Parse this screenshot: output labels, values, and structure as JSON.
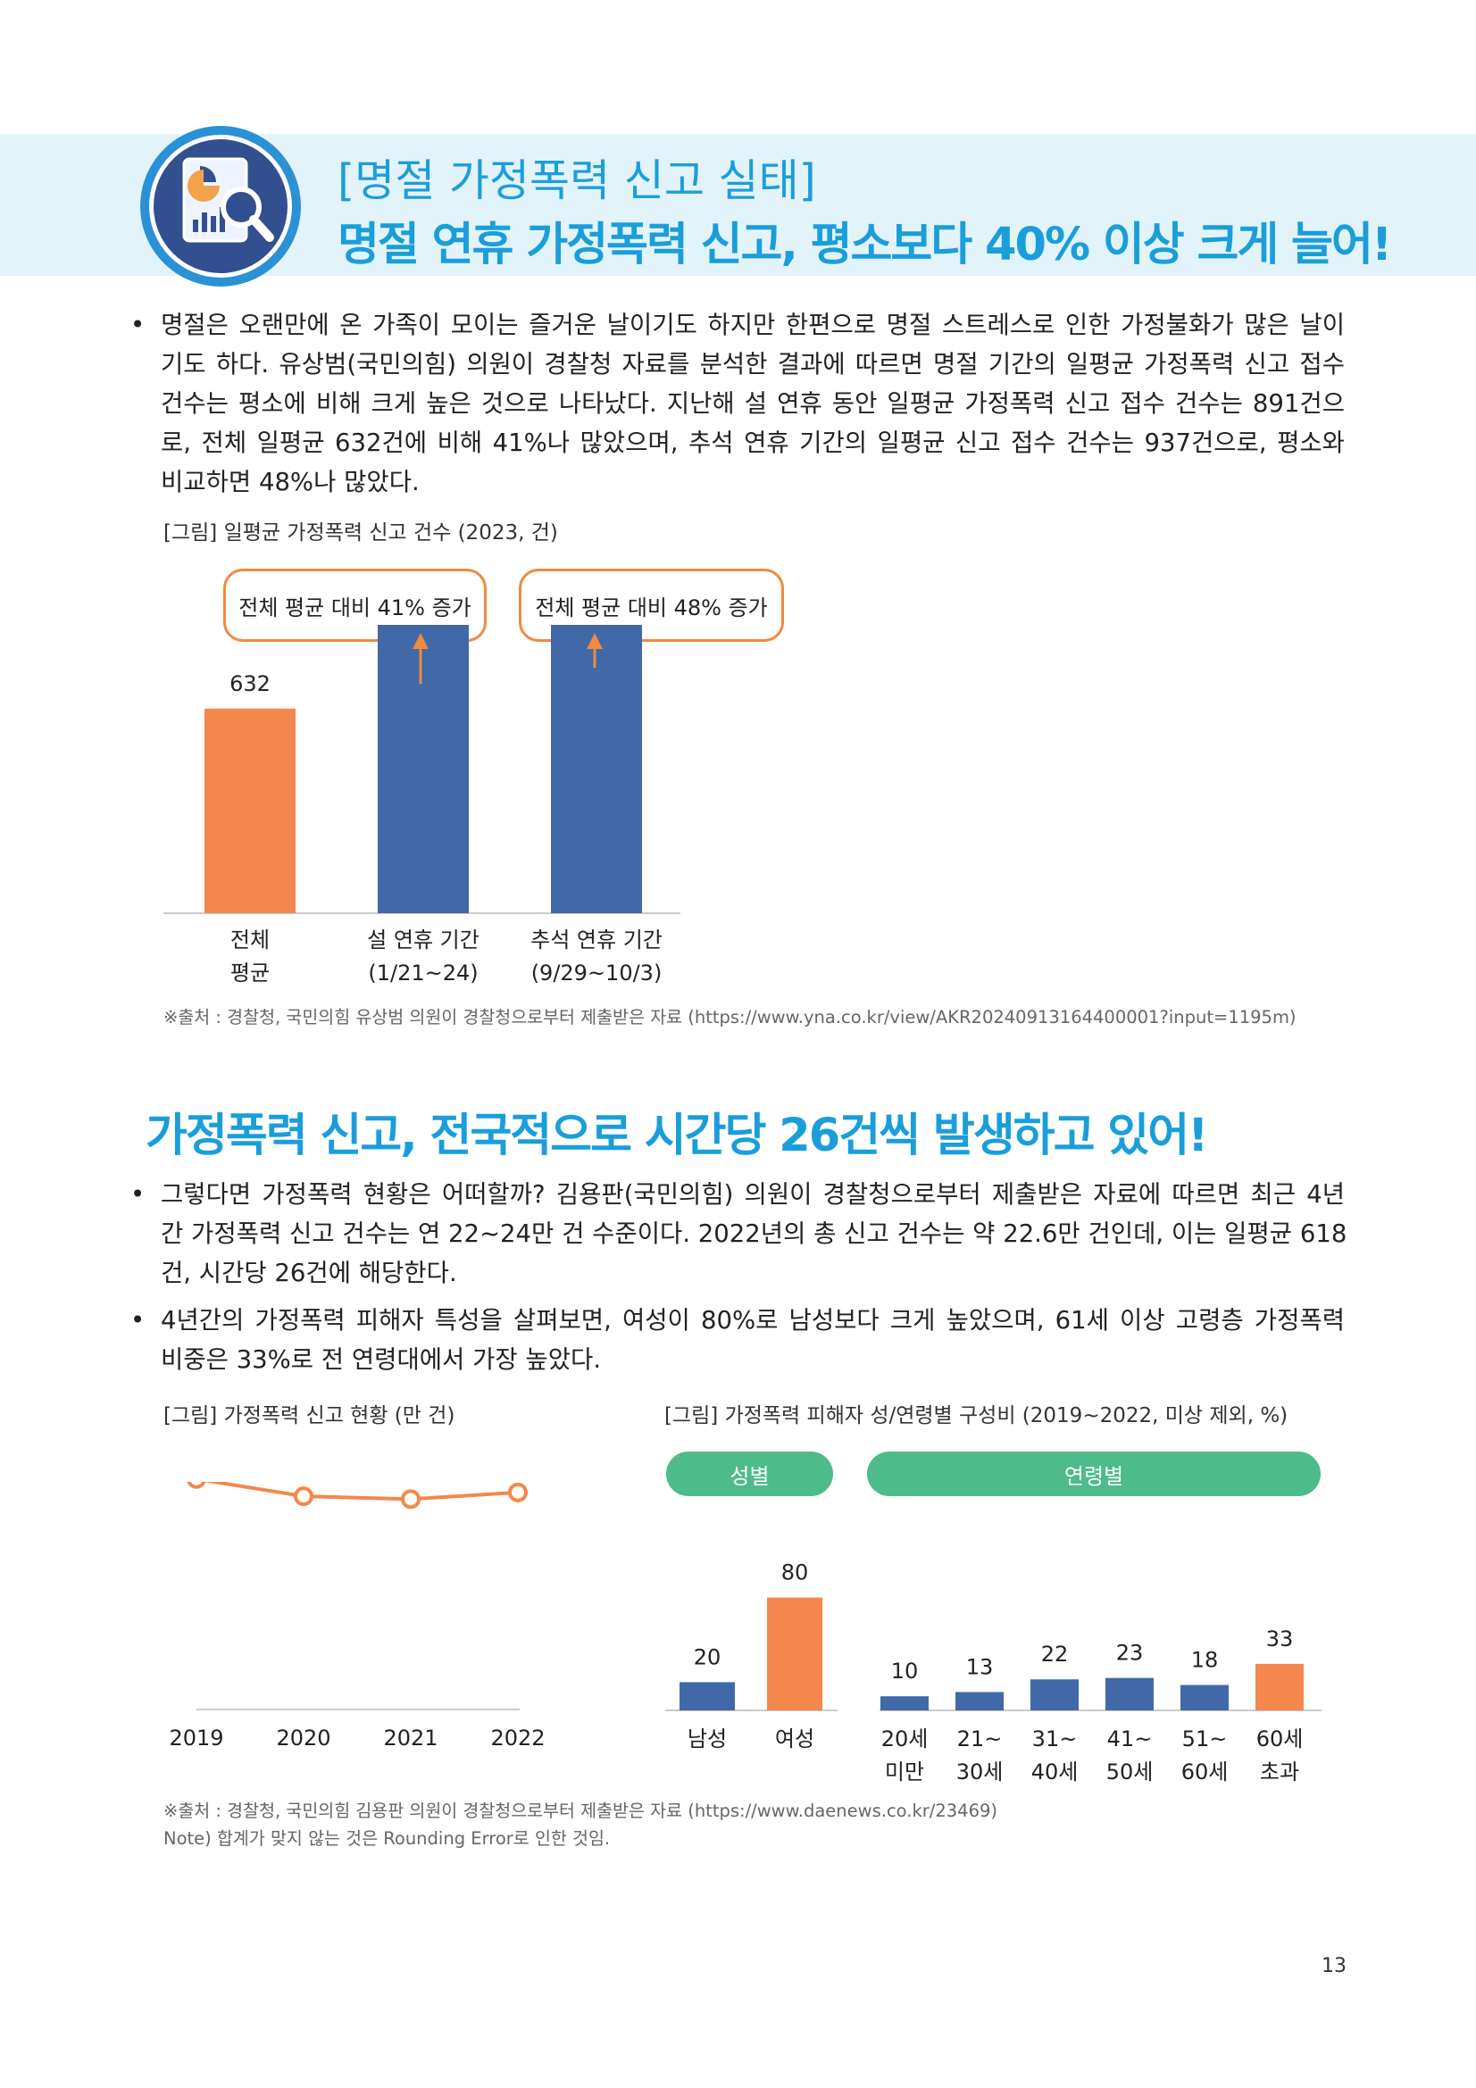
{
  "header": {
    "title1": "[명절 가정폭력 신고 실태]",
    "title2": "명절 연휴 가정폭력 신고, 평소보다 40% 이상 크게 늘어!",
    "icon": "chart-magnifier-icon"
  },
  "section1": {
    "bullet": "•",
    "para_lines": [
      "명절은 오랜만에 온 가족이 모이는 즐거운 날이기도 하지만 한편으로 명절 스트레스로 인한 가정불화가 많은 날이",
      "기도 하다. 유상범(국민의힘) 의원이 경찰청 자료를 분석한 결과에 따르면 명절 기간의 일평균 가정폭력 신고 접수",
      "건수는 평소에 비해 크게 높은 것으로 나타났다. 지난해 설 연휴 동안 일평균 가정폭력 신고 접수 건수는 891건으",
      "로, 전체 일평균 632건에 비해 41%나 많았으며, 추석 연휴 기간의 일평균 신고 접수 건수는 937건으로, 평소와",
      "비교하면 48%나 많았다."
    ],
    "caption": "[그림] 일평균 가정폭력 신고 건수 (2023, 건)",
    "callouts": [
      "전체 평균 대비 41% 증가",
      "전체 평균 대비 48% 증가"
    ],
    "source": "※출처 : 경찰청, 국민의힘 유상범 의원이 경찰청으로부터 제출받은 자료 (https://www.yna.co.kr/view/AKR20240913164400001?input=1195m)"
  },
  "section2": {
    "heading": "가정폭력 신고, 전국적으로 시간당 26건씩 발생하고 있어!",
    "bullet": "•",
    "para1_lines": [
      "그렇다면 가정폭력 현황은 어떠할까? 김용판(국민의힘) 의원이 경찰청으로부터 제출받은 자료에 따르면 최근 4년",
      "간 가정폭력 신고 건수는 연 22~24만 건 수준이다. 2022년의 총 신고 건수는 약 22.6만 건인데, 이는 일평균 618",
      "건, 시간당 26건에 해당한다."
    ],
    "para2_lines": [
      "4년간의 가정폭력 피해자 특성을 살펴보면, 여성이 80%로 남성보다 크게 높았으며, 61세 이상 고령층 가정폭력",
      "비중은 33%로 전 연령대에서 가장 높았다."
    ],
    "caption_left": "[그림] 가정폭력 신고 현황 (만 건)",
    "caption_right": "[그림] 가정폭력 피해자 성/연령별 구성비 (2019~2022, 미상 제외, %)",
    "pill_gender": "성별",
    "pill_age": "연령별",
    "source": "※출처 : 경찰청, 국민의힘 김용판 의원이 경찰청으로부터 제출받은 자료 (https://www.daenews.co.kr/23469)",
    "note": "Note) 합계가 맞지 않는 것은 Rounding Error로 인한 것임."
  },
  "page_number": "13",
  "colors": {
    "accent": "#1a9edb",
    "orange": "#f4874b",
    "blue": "#4169a8",
    "green": "#4dbb8a"
  },
  "chart_data": [
    {
      "type": "bar",
      "categories": [
        [
          "전체",
          "평균"
        ],
        [
          "설 연휴 기간",
          "(1/21~24)"
        ],
        [
          "추석 연휴 기간",
          "(9/29~10/3)"
        ]
      ],
      "values": [
        632,
        891,
        937
      ],
      "labels": [
        "632",
        "891",
        "937"
      ],
      "colors": [
        "#f4874b",
        "#4169a8",
        "#4169a8"
      ],
      "ylim": [
        0,
        1100
      ]
    },
    {
      "type": "line",
      "x": [
        "2019",
        "2020",
        "2021",
        "2022"
      ],
      "values": [
        24.0,
        22.2,
        21.9,
        22.6
      ],
      "labels": [
        "24.0",
        "22.2",
        "21.9",
        "22.6"
      ],
      "ylim": [
        0,
        26.3
      ]
    },
    {
      "type": "bar",
      "group": "성별",
      "categories": [
        [
          "남성"
        ],
        [
          "여성"
        ]
      ],
      "values": [
        20,
        80
      ],
      "labels": [
        "20",
        "80"
      ],
      "colors": [
        "#4169a8",
        "#f4874b"
      ],
      "ylim": [
        0,
        100
      ]
    },
    {
      "type": "bar",
      "group": "연령별",
      "categories": [
        [
          "20세",
          "미만"
        ],
        [
          "21~",
          "30세"
        ],
        [
          "31~",
          "40세"
        ],
        [
          "41~",
          "50세"
        ],
        [
          "51~",
          "60세"
        ],
        [
          "60세",
          "초과"
        ]
      ],
      "values": [
        10,
        13,
        22,
        23,
        18,
        33
      ],
      "labels": [
        "10",
        "13",
        "22",
        "23",
        "18",
        "33"
      ],
      "colors": [
        "#4169a8",
        "#4169a8",
        "#4169a8",
        "#4169a8",
        "#4169a8",
        "#f4874b"
      ],
      "ylim": [
        0,
        100
      ]
    }
  ]
}
